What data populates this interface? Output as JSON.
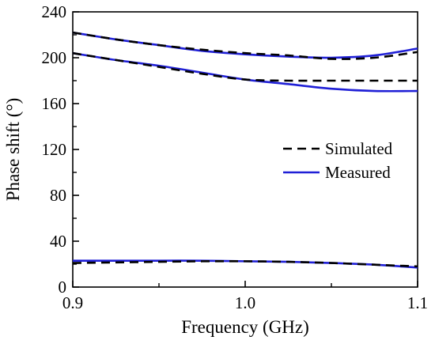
{
  "chart_data": {
    "type": "line",
    "title": "",
    "xlabel": "Frequency (GHz)",
    "ylabel": "Phase shift (°)",
    "xlim": [
      0.9,
      1.1
    ],
    "ylim": [
      0,
      240
    ],
    "x_ticks": [
      "0.9",
      "1.0",
      "1.1"
    ],
    "y_ticks": [
      "0",
      "40",
      "80",
      "120",
      "160",
      "200",
      "240"
    ],
    "x_tick_values": [
      0.9,
      1.0,
      1.1
    ],
    "y_tick_values": [
      0,
      40,
      80,
      120,
      160,
      200,
      240
    ],
    "grid": false,
    "legend_position": "right",
    "legend": [
      {
        "label": "Simulated",
        "style": "dashed",
        "color": "#000000"
      },
      {
        "label": "Measured",
        "style": "solid",
        "color": "#1f1fd6"
      }
    ],
    "x": [
      0.9,
      0.925,
      0.95,
      0.975,
      1.0,
      1.025,
      1.05,
      1.075,
      1.1
    ],
    "series": [
      {
        "group": "Simulated",
        "style": "dashed",
        "color": "#000000",
        "values": [
          222,
          216,
          211,
          207,
          204,
          202,
          199,
          200,
          205
        ]
      },
      {
        "group": "Simulated",
        "style": "dashed",
        "color": "#000000",
        "values": [
          204,
          198,
          192,
          186,
          181,
          180,
          180,
          180,
          180
        ]
      },
      {
        "group": "Simulated",
        "style": "dashed",
        "color": "#000000",
        "values": [
          21,
          21.5,
          22,
          22.5,
          22.5,
          22,
          21,
          19.5,
          18
        ]
      },
      {
        "group": "Measured",
        "style": "solid",
        "color": "#1f1fd6",
        "values": [
          222,
          216,
          211,
          206,
          203,
          201,
          200,
          202,
          208
        ]
      },
      {
        "group": "Measured",
        "style": "solid",
        "color": "#1f1fd6",
        "values": [
          204,
          198,
          193,
          187,
          181,
          177,
          173,
          171,
          171
        ]
      },
      {
        "group": "Measured",
        "style": "solid",
        "color": "#1f1fd6",
        "values": [
          23,
          23,
          23,
          23,
          22.5,
          22,
          21,
          19.5,
          17
        ]
      }
    ]
  }
}
